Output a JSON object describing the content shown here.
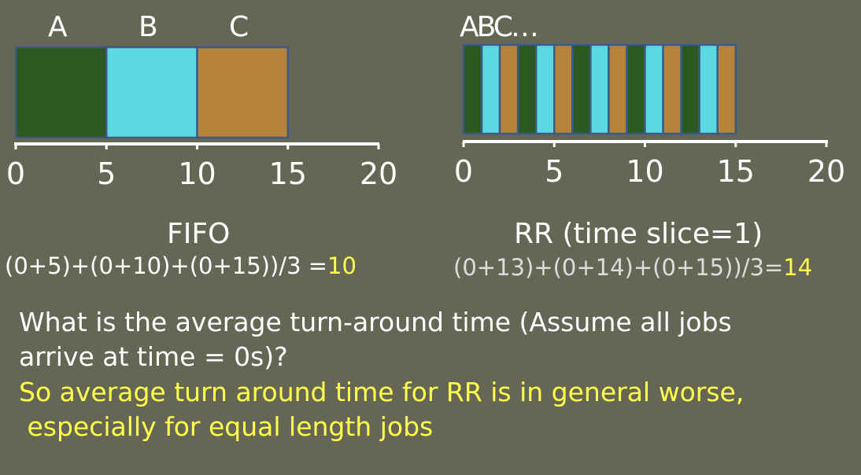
{
  "colors": {
    "background": "#666655",
    "job_a": "#2a5a22",
    "job_b": "#5bd9e1",
    "job_c": "#b5833a",
    "outline": "#3d5a86",
    "axis": "#ffffff",
    "text": "#ffffff",
    "formula_text_rr": "#dddddd",
    "highlight": "#ffff4d"
  },
  "fifo": {
    "title": "FIFO",
    "job_labels": [
      "A",
      "B",
      "C"
    ],
    "blocks": [
      {
        "job": "A",
        "start": 0,
        "end": 5
      },
      {
        "job": "B",
        "start": 5,
        "end": 10
      },
      {
        "job": "C",
        "start": 10,
        "end": 15
      }
    ],
    "axis_range": [
      0,
      20
    ],
    "ticks": [
      "0",
      "5",
      "10",
      "15",
      "20"
    ],
    "formula_prefix": "(0+5)+(0+10)+(0+15))/3 =",
    "formula_result": "10"
  },
  "rr": {
    "title": "RR (time slice=1)",
    "header_label": "ABC…",
    "slice_sequence": [
      "A",
      "B",
      "C",
      "A",
      "B",
      "C",
      "A",
      "B",
      "C",
      "A",
      "B",
      "C",
      "A",
      "B",
      "C"
    ],
    "axis_range": [
      0,
      20
    ],
    "ticks": [
      "0",
      "5",
      "10",
      "15",
      "20"
    ],
    "formula_prefix": "(0+13)+(0+14)+(0+15))/3=",
    "formula_result": "14"
  },
  "question": {
    "line1": "What is the average turn-around time (Assume all jobs",
    "line2": "arrive at time = 0s)?",
    "answer_line1": "So average turn around time for RR is in general worse,",
    "answer_line2": " especially for equal length jobs"
  }
}
